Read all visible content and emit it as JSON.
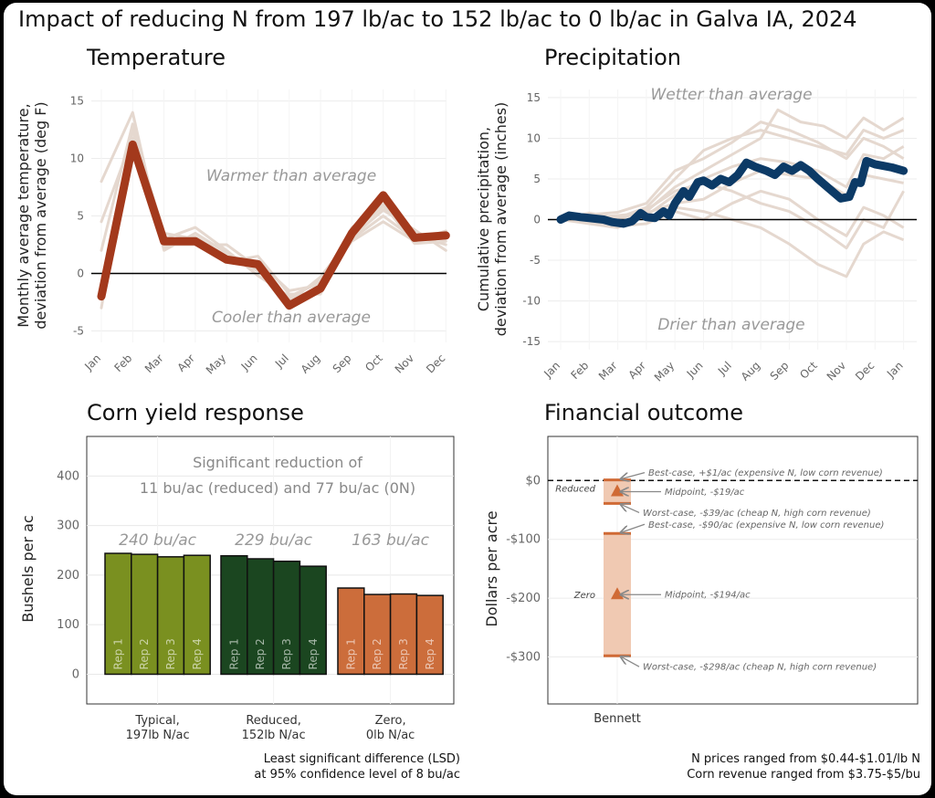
{
  "title": "Impact of reducing N from 197 lb/ac to 152 lb/ac to 0 lb/ac in Galva IA, 2024",
  "colors": {
    "temp_line": "#a3391c",
    "precip_line": "#0c3a66",
    "background_lines": "#e5d8cf",
    "typical": "#7a9020",
    "reduced": "#1b4620",
    "zero": "#cc6d3b",
    "financial_band": "#f0c9b2",
    "financial_marker": "#d06a35"
  },
  "chart_data": [
    {
      "id": "temperature",
      "type": "line",
      "title": "Temperature",
      "ylabel": "Monthly average temperature,\ndeviation from average (deg F)",
      "ylim": [
        -6,
        16
      ],
      "yticks": [
        -5,
        0,
        5,
        10,
        15
      ],
      "categories": [
        "Jan",
        "Feb",
        "Mar",
        "Apr",
        "May",
        "Jun",
        "Jul",
        "Aug",
        "Sep",
        "Oct",
        "Nov",
        "Dec"
      ],
      "series": [
        {
          "values": [
            -2,
            11.2,
            2.8,
            2.8,
            1.2,
            0.8,
            -2.8,
            -1.3,
            3.5,
            6.8,
            3.1,
            3.3
          ],
          "highlight": true
        }
      ],
      "background_series": [
        [
          8.0,
          14.0,
          2.0,
          3.5,
          1.8,
          0.2,
          -2.2,
          -0.6,
          3.0,
          5.0,
          3.0,
          3.4
        ],
        [
          -3.0,
          12.5,
          3.5,
          3.0,
          1.0,
          1.5,
          -1.8,
          -1.8,
          4.0,
          6.0,
          2.6,
          2.8
        ],
        [
          2.0,
          13.0,
          2.5,
          2.5,
          2.5,
          0.5,
          -2.5,
          -0.3,
          3.2,
          5.5,
          3.8,
          2.0
        ],
        [
          4.5,
          11.8,
          3.0,
          4.0,
          2.0,
          -0.2,
          -2.0,
          -0.8,
          2.8,
          4.5,
          2.8,
          3.7
        ],
        [
          -1.0,
          10.5,
          2.2,
          3.2,
          1.5,
          1.0,
          -1.5,
          -1.0,
          3.6,
          5.8,
          3.3,
          2.5
        ]
      ],
      "annotations": [
        "Warmer than average",
        "Cooler than average"
      ]
    },
    {
      "id": "precipitation",
      "type": "line",
      "title": "Precipitation",
      "ylabel": "Cumulative precipitation,\ndeviation from average (inches)",
      "ylim": [
        -16,
        16
      ],
      "yticks": [
        -15,
        -10,
        -5,
        0,
        5,
        10,
        15
      ],
      "xticks": [
        "Jan",
        "Feb",
        "Mar",
        "Apr",
        "May",
        "Jun",
        "Jul",
        "Aug",
        "Sep",
        "Oct",
        "Nov",
        "Dec",
        "Jan"
      ],
      "series": [
        {
          "values": [
            [
              0,
              0
            ],
            [
              0.3,
              0.5
            ],
            [
              0.7,
              0.3
            ],
            [
              1.0,
              0.2
            ],
            [
              1.5,
              0
            ],
            [
              1.8,
              -0.3
            ],
            [
              2.2,
              -0.5
            ],
            [
              2.5,
              -0.2
            ],
            [
              2.8,
              0.8
            ],
            [
              3.0,
              0.3
            ],
            [
              3.3,
              0.2
            ],
            [
              3.6,
              1.0
            ],
            [
              3.8,
              0.5
            ],
            [
              4.0,
              2.0
            ],
            [
              4.3,
              3.5
            ],
            [
              4.5,
              2.8
            ],
            [
              4.8,
              4.6
            ],
            [
              5.0,
              4.8
            ],
            [
              5.3,
              4.2
            ],
            [
              5.6,
              5.0
            ],
            [
              5.9,
              4.6
            ],
            [
              6.2,
              5.5
            ],
            [
              6.5,
              7.0
            ],
            [
              6.8,
              6.5
            ],
            [
              7.2,
              6.0
            ],
            [
              7.5,
              5.5
            ],
            [
              7.8,
              6.5
            ],
            [
              8.1,
              6.0
            ],
            [
              8.4,
              6.7
            ],
            [
              8.7,
              6.0
            ],
            [
              9.0,
              5.0
            ],
            [
              9.4,
              3.8
            ],
            [
              9.8,
              2.6
            ],
            [
              10.1,
              2.8
            ],
            [
              10.3,
              4.6
            ],
            [
              10.5,
              4.5
            ],
            [
              10.7,
              7.2
            ],
            [
              11.0,
              6.8
            ],
            [
              11.3,
              6.6
            ],
            [
              11.6,
              6.4
            ],
            [
              12.0,
              6.0
            ]
          ],
          "highlight": true
        }
      ],
      "background_series": [
        [
          [
            0,
            0
          ],
          [
            1,
            0.5
          ],
          [
            2,
            -0.5
          ],
          [
            3,
            1.0
          ],
          [
            4,
            4.0
          ],
          [
            5,
            6.0
          ],
          [
            6,
            8.0
          ],
          [
            7,
            10.0
          ],
          [
            7.6,
            13.5
          ],
          [
            8.4,
            12.0
          ],
          [
            9.2,
            11.5
          ],
          [
            10,
            10.0
          ],
          [
            10.6,
            12.5
          ],
          [
            11.3,
            11.0
          ],
          [
            12,
            12.5
          ]
        ],
        [
          [
            0,
            0
          ],
          [
            1,
            0.8
          ],
          [
            2,
            0.2
          ],
          [
            3,
            1.5
          ],
          [
            4,
            5.0
          ],
          [
            5,
            8.5
          ],
          [
            6,
            10.0
          ],
          [
            7,
            11.0
          ],
          [
            8,
            10.0
          ],
          [
            9,
            9.0
          ],
          [
            10,
            8.0
          ],
          [
            10.6,
            11.0
          ],
          [
            11.3,
            10.0
          ],
          [
            12,
            11.0
          ]
        ],
        [
          [
            0,
            0
          ],
          [
            1,
            -0.5
          ],
          [
            2,
            -1.0
          ],
          [
            3,
            0.5
          ],
          [
            4,
            3.0
          ],
          [
            5,
            5.0
          ],
          [
            6,
            6.5
          ],
          [
            7,
            7.5
          ],
          [
            8,
            7.0
          ],
          [
            9,
            6.0
          ],
          [
            10,
            4.0
          ],
          [
            10.6,
            8.0
          ],
          [
            11.3,
            7.5
          ],
          [
            12,
            9.0
          ]
        ],
        [
          [
            0,
            0
          ],
          [
            1,
            0.2
          ],
          [
            2,
            0.5
          ],
          [
            3,
            0.8
          ],
          [
            4,
            2.0
          ],
          [
            5,
            2.5
          ],
          [
            6,
            4.5
          ],
          [
            7,
            6.0
          ],
          [
            8,
            5.5
          ],
          [
            9,
            5.0
          ],
          [
            10,
            3.0
          ],
          [
            10.6,
            5.5
          ],
          [
            11.3,
            5.0
          ],
          [
            12,
            4.5
          ]
        ],
        [
          [
            0,
            0
          ],
          [
            1,
            -0.2
          ],
          [
            2,
            -0.8
          ],
          [
            3,
            -0.5
          ],
          [
            4,
            1.0
          ],
          [
            5,
            0
          ],
          [
            6,
            2.0
          ],
          [
            7,
            3.5
          ],
          [
            8,
            2.5
          ],
          [
            9,
            0
          ],
          [
            10,
            -2.0
          ],
          [
            10.6,
            1.5
          ],
          [
            11.3,
            0.5
          ],
          [
            12,
            -1.0
          ]
        ],
        [
          [
            0,
            0
          ],
          [
            1,
            0.4
          ],
          [
            2,
            -0.3
          ],
          [
            3,
            0.2
          ],
          [
            4,
            1.5
          ],
          [
            5,
            1.0
          ],
          [
            6,
            0
          ],
          [
            7,
            -1.0
          ],
          [
            8,
            -3.0
          ],
          [
            9,
            -5.5
          ],
          [
            10,
            -7.0
          ],
          [
            10.6,
            -3.0
          ],
          [
            11.3,
            -1.5
          ],
          [
            12,
            -2.5
          ]
        ],
        [
          [
            0,
            0
          ],
          [
            1,
            0.6
          ],
          [
            2,
            0.9
          ],
          [
            3,
            2.0
          ],
          [
            4,
            6.0
          ],
          [
            5,
            7.5
          ],
          [
            6,
            9.5
          ],
          [
            7,
            12.0
          ],
          [
            8,
            11.0
          ],
          [
            9,
            9.5
          ],
          [
            10,
            7.5
          ],
          [
            10.6,
            10.0
          ],
          [
            11.3,
            9.0
          ],
          [
            12,
            7.5
          ]
        ],
        [
          [
            0,
            0
          ],
          [
            1,
            -0.4
          ],
          [
            2,
            0
          ],
          [
            3,
            1.2
          ],
          [
            4,
            3.5
          ],
          [
            5,
            4.5
          ],
          [
            6,
            3.5
          ],
          [
            7,
            2.0
          ],
          [
            8,
            1.0
          ],
          [
            9,
            -1.0
          ],
          [
            10,
            -3.5
          ],
          [
            10.6,
            0
          ],
          [
            11.3,
            -1.0
          ],
          [
            12,
            3.5
          ]
        ]
      ],
      "annotations": [
        "Wetter than average",
        "Drier than average"
      ]
    },
    {
      "id": "corn-yield",
      "type": "bar",
      "title": "Corn yield response",
      "ylabel": "Bushels per ac",
      "ylim": [
        -60,
        480
      ],
      "yticks": [
        0,
        100,
        200,
        300,
        400
      ],
      "groups": [
        {
          "label": "Typical,\n197lb N/ac",
          "mean_label": "240 bu/ac",
          "color_key": "typical",
          "reps": [
            "Rep 1",
            "Rep 2",
            "Rep 3",
            "Rep 4"
          ],
          "values": [
            244,
            242,
            237,
            240
          ]
        },
        {
          "label": "Reduced,\n152lb N/ac",
          "mean_label": "229 bu/ac",
          "color_key": "reduced",
          "reps": [
            "Rep 1",
            "Rep 2",
            "Rep 3",
            "Rep 4"
          ],
          "values": [
            239,
            233,
            228,
            218
          ]
        },
        {
          "label": "Zero,\n0lb N/ac",
          "mean_label": "163 bu/ac",
          "color_key": "zero",
          "reps": [
            "Rep 1",
            "Rep 2",
            "Rep 3",
            "Rep 4"
          ],
          "values": [
            174,
            161,
            162,
            159
          ]
        }
      ],
      "annotation": "Significant reduction of\n11 bu/ac (reduced) and 77 bu/ac (0N)"
    },
    {
      "id": "financial",
      "type": "scatter",
      "title": "Financial outcome",
      "ylabel": "Dollars per acre",
      "ylim": [
        -380,
        75
      ],
      "yticks": [
        0,
        -100,
        -200,
        -300
      ],
      "ytick_labels": [
        "$0",
        "-$100",
        "-$200",
        "-$300"
      ],
      "xticks": [
        "Bennett"
      ],
      "scenarios": [
        {
          "name": "Reduced",
          "best": 1,
          "mid": -19,
          "worst": -39,
          "best_label": "Best-case, +$1/ac (expensive N, low corn revenue)",
          "mid_label": "Midpoint, -$19/ac",
          "worst_label": "Worst-case, -$39/ac (cheap N,  high corn revenue)"
        },
        {
          "name": "Zero",
          "best": -90,
          "mid": -194,
          "worst": -298,
          "best_label": "Best-case, -$90/ac (expensive N, low corn revenue)",
          "mid_label": "Midpoint, -$194/ac",
          "worst_label": "Worst-case, -$298/ac (cheap N,  high corn revenue)"
        }
      ]
    }
  ],
  "footnotes": {
    "lsd": "Least significant difference (LSD)\nat 95% confidence level of 8 bu/ac",
    "prices": "N prices ranged from $0.44-$1.01/lb N\nCorn revenue ranged from $3.75-$5/bu"
  }
}
